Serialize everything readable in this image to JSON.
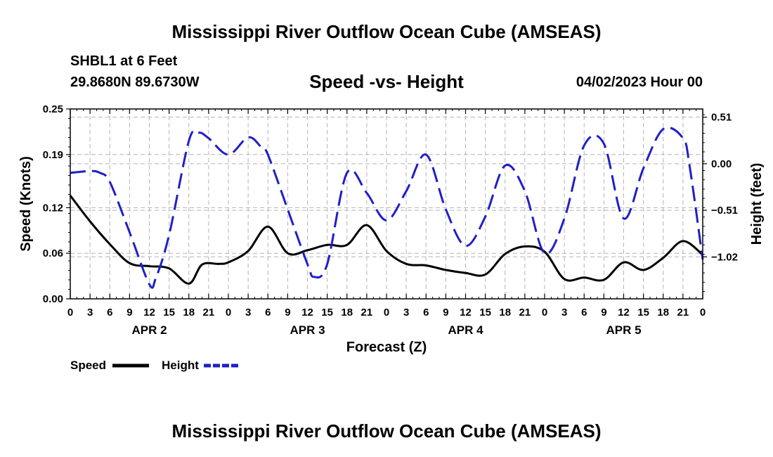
{
  "header": {
    "main_title": "Mississippi River Outflow Ocean Cube (AMSEAS)",
    "station": "SHBL1 at 6 Feet",
    "coords": "29.8680N  89.6730W",
    "subtitle": "Speed -vs- Height",
    "date": "04/02/2023 Hour 00",
    "bottom_title": "Mississippi River Outflow Ocean Cube (AMSEAS)"
  },
  "chart_data": {
    "type": "line",
    "title": "Speed -vs- Height",
    "xlabel": "Forecast (Z)",
    "ylabel": "Speed (Knots)",
    "ylabel_right": "Height (feet)",
    "x_range": [
      0,
      96
    ],
    "ylim": [
      0,
      0.25
    ],
    "ylim_right": [
      -1.48,
      0.6
    ],
    "x_tick_hours": [
      0,
      3,
      6,
      9,
      12,
      15,
      18,
      21,
      24,
      27,
      30,
      33,
      36,
      39,
      42,
      45,
      48,
      51,
      54,
      57,
      60,
      63,
      66,
      69,
      72,
      75,
      78,
      81,
      84,
      87,
      90,
      93,
      96
    ],
    "x_tick_labels": [
      "0",
      "3",
      "6",
      "9",
      "12",
      "15",
      "18",
      "21",
      "0",
      "3",
      "6",
      "9",
      "12",
      "15",
      "18",
      "21",
      "0",
      "3",
      "6",
      "9",
      "12",
      "15",
      "18",
      "21",
      "0",
      "3",
      "6",
      "9",
      "12",
      "15",
      "18",
      "21",
      "0"
    ],
    "day_labels": [
      {
        "hour": 12,
        "label": "APR 2"
      },
      {
        "hour": 36,
        "label": "APR 3"
      },
      {
        "hour": 60,
        "label": "APR 4"
      },
      {
        "hour": 84,
        "label": "APR 5"
      }
    ],
    "y_ticks": [
      0.0,
      0.06,
      0.12,
      0.19,
      0.25
    ],
    "y_tick_labels": [
      "0.00",
      "0.06",
      "0.12",
      "0.19",
      "0.25"
    ],
    "y_right_ticks": [
      0.51,
      0.0,
      -0.51,
      -1.02
    ],
    "y_right_tick_labels": [
      "0.51",
      "0.00",
      "−0.51",
      "−1.02"
    ],
    "grid": true,
    "series": [
      {
        "name": "Speed",
        "axis": "left",
        "color": "#000000",
        "dash": "solid",
        "x": [
          0,
          3,
          6,
          9,
          12,
          15,
          18,
          20,
          22.5,
          24,
          27,
          30,
          33,
          36,
          39,
          42,
          45,
          48,
          51,
          54,
          57,
          60,
          63,
          66,
          69,
          72,
          75,
          78,
          81,
          84,
          87,
          90,
          93,
          96
        ],
        "y": [
          0.136,
          0.102,
          0.072,
          0.047,
          0.043,
          0.04,
          0.02,
          0.045,
          0.046,
          0.048,
          0.063,
          0.095,
          0.06,
          0.064,
          0.071,
          0.071,
          0.097,
          0.063,
          0.046,
          0.044,
          0.038,
          0.034,
          0.032,
          0.059,
          0.069,
          0.062,
          0.026,
          0.028,
          0.025,
          0.048,
          0.038,
          0.054,
          0.076,
          0.058
        ]
      },
      {
        "name": "Height",
        "axis": "right",
        "color": "#1f1fc8",
        "dash": "dashed",
        "x": [
          0,
          3,
          4.5,
          6,
          9,
          12,
          13,
          15,
          18,
          19.5,
          21,
          24,
          27,
          29,
          30,
          33,
          36,
          37,
          39,
          42,
          45,
          48,
          51,
          54,
          57,
          60,
          63,
          66,
          69,
          72,
          75,
          78,
          81,
          84,
          87,
          90,
          93,
          94,
          96
        ],
        "y": [
          -0.1,
          -0.08,
          -0.1,
          -0.2,
          -0.75,
          -1.32,
          -1.25,
          -0.78,
          0.25,
          0.34,
          0.28,
          0.1,
          0.29,
          0.18,
          0.1,
          -0.5,
          -1.1,
          -1.24,
          -1.1,
          -0.1,
          -0.32,
          -0.62,
          -0.3,
          0.1,
          -0.5,
          -0.9,
          -0.58,
          -0.02,
          -0.3,
          -0.98,
          -0.6,
          0.2,
          0.22,
          -0.6,
          -0.05,
          0.38,
          0.28,
          -0.02,
          -1.05
        ]
      }
    ]
  }
}
